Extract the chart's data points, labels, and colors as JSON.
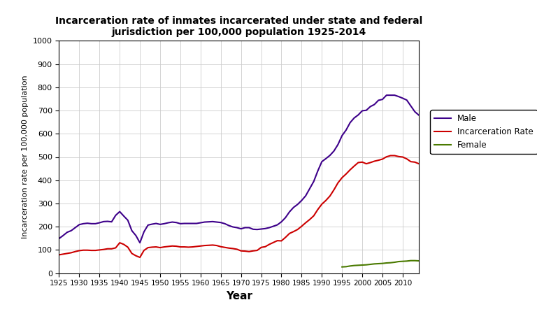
{
  "title": "Incarceration rate of inmates incarcerated under state and federal\njurisdiction per 100,000 population 1925-2014",
  "xlabel": "Year",
  "ylabel": "Incarceration rate per 100,000 population",
  "xlim": [
    1925,
    2014
  ],
  "ylim": [
    0,
    1000
  ],
  "yticks": [
    0,
    100,
    200,
    300,
    400,
    500,
    600,
    700,
    800,
    900,
    1000
  ],
  "xticks": [
    1925,
    1930,
    1935,
    1940,
    1945,
    1950,
    1955,
    1960,
    1965,
    1970,
    1975,
    1980,
    1985,
    1990,
    1995,
    2000,
    2005,
    2010
  ],
  "background_color": "#ffffff",
  "grid_color": "#cccccc",
  "male_color": "#3d008a",
  "rate_color": "#cc0000",
  "female_color": "#4a7a00",
  "male_label": "Male",
  "rate_label": "Incarceration Rate",
  "female_label": "Female",
  "years": [
    1925,
    1926,
    1927,
    1928,
    1929,
    1930,
    1931,
    1932,
    1933,
    1934,
    1935,
    1936,
    1937,
    1938,
    1939,
    1940,
    1941,
    1942,
    1943,
    1944,
    1945,
    1946,
    1947,
    1948,
    1949,
    1950,
    1951,
    1952,
    1953,
    1954,
    1955,
    1956,
    1957,
    1958,
    1959,
    1960,
    1961,
    1962,
    1963,
    1964,
    1965,
    1966,
    1967,
    1968,
    1969,
    1970,
    1971,
    1972,
    1973,
    1974,
    1975,
    1976,
    1977,
    1978,
    1979,
    1980,
    1981,
    1982,
    1983,
    1984,
    1985,
    1986,
    1987,
    1988,
    1989,
    1990,
    1991,
    1992,
    1993,
    1994,
    1995,
    1996,
    1997,
    1998,
    1999,
    2000,
    2001,
    2002,
    2003,
    2004,
    2005,
    2006,
    2007,
    2008,
    2009,
    2010,
    2011,
    2012,
    2013,
    2014
  ],
  "male_rate": [
    149,
    162,
    176,
    183,
    196,
    209,
    213,
    215,
    213,
    213,
    217,
    222,
    223,
    221,
    249,
    265,
    246,
    228,
    183,
    162,
    131,
    178,
    207,
    211,
    214,
    210,
    213,
    217,
    220,
    218,
    213,
    214,
    214,
    214,
    214,
    217,
    220,
    221,
    222,
    220,
    218,
    213,
    205,
    199,
    196,
    191,
    196,
    196,
    189,
    188,
    190,
    192,
    196,
    202,
    208,
    221,
    239,
    264,
    283,
    296,
    313,
    333,
    364,
    395,
    440,
    480,
    493,
    507,
    526,
    554,
    592,
    616,
    648,
    668,
    681,
    699,
    701,
    717,
    726,
    744,
    748,
    766,
    766,
    766,
    760,
    753,
    745,
    720,
    695,
    680
  ],
  "total_rate": [
    79,
    82,
    85,
    88,
    93,
    97,
    99,
    99,
    98,
    98,
    100,
    102,
    105,
    105,
    109,
    131,
    124,
    112,
    85,
    75,
    68,
    98,
    110,
    112,
    113,
    110,
    113,
    115,
    117,
    116,
    113,
    113,
    112,
    113,
    115,
    117,
    119,
    120,
    121,
    119,
    114,
    111,
    108,
    106,
    103,
    96,
    95,
    93,
    96,
    98,
    111,
    114,
    124,
    132,
    140,
    139,
    154,
    171,
    179,
    188,
    202,
    217,
    231,
    247,
    274,
    297,
    313,
    332,
    359,
    389,
    411,
    427,
    445,
    461,
    476,
    478,
    471,
    476,
    482,
    486,
    491,
    501,
    506,
    506,
    502,
    500,
    492,
    480,
    478,
    471
  ],
  "female_rate": [
    null,
    null,
    null,
    null,
    null,
    null,
    null,
    null,
    null,
    null,
    null,
    null,
    null,
    null,
    null,
    null,
    null,
    null,
    null,
    null,
    null,
    null,
    null,
    null,
    null,
    null,
    null,
    null,
    null,
    null,
    null,
    null,
    null,
    null,
    null,
    null,
    null,
    null,
    null,
    null,
    null,
    null,
    null,
    null,
    null,
    null,
    null,
    null,
    null,
    null,
    null,
    null,
    null,
    null,
    null,
    null,
    null,
    null,
    null,
    null,
    null,
    null,
    null,
    null,
    null,
    null,
    null,
    null,
    null,
    null,
    27,
    28,
    31,
    33,
    34,
    35,
    36,
    38,
    40,
    41,
    42,
    44,
    45,
    47,
    50,
    51,
    52,
    54,
    54,
    53
  ]
}
